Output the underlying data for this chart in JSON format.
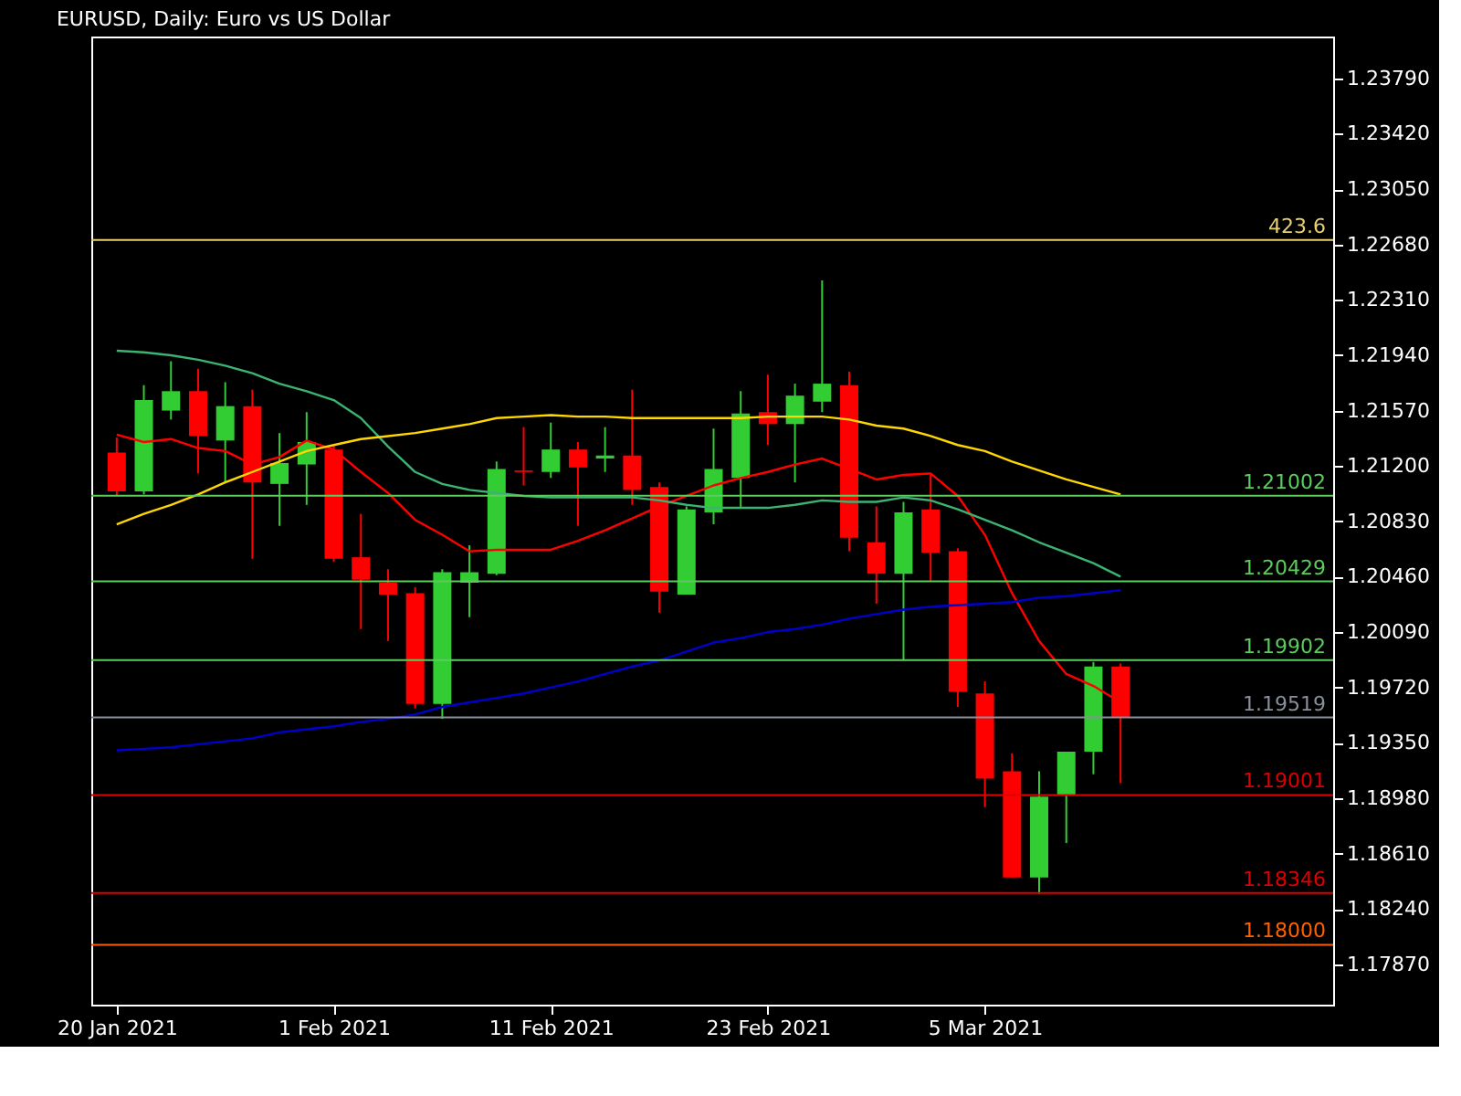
{
  "chart_data": {
    "type": "candlestick",
    "title": "EURUSD, Daily:  Euro vs US Dollar",
    "categories": [
      "20 Jan 2021",
      null,
      null,
      null,
      null,
      null,
      null,
      null,
      "1 Feb 2021",
      null,
      null,
      null,
      null,
      null,
      null,
      null,
      "11 Feb 2021",
      null,
      null,
      null,
      null,
      null,
      null,
      null,
      "23 Feb 2021",
      null,
      null,
      null,
      null,
      null,
      null,
      null,
      "5 Mar 2021",
      null,
      null,
      null,
      null,
      null
    ],
    "ohlc": [
      [
        1.2129,
        1.2139,
        1.21,
        1.2103
      ],
      [
        1.2103,
        1.2174,
        1.2101,
        1.2164
      ],
      [
        1.2157,
        1.219,
        1.2151,
        1.217
      ],
      [
        1.217,
        1.2185,
        1.2115,
        1.214
      ],
      [
        1.2137,
        1.2176,
        1.2109,
        1.216
      ],
      [
        1.216,
        1.2171,
        1.2058,
        1.2109
      ],
      [
        1.2108,
        1.2142,
        1.208,
        1.2122
      ],
      [
        1.2121,
        1.2156,
        1.2094,
        1.2136
      ],
      [
        1.2131,
        1.2134,
        1.2056,
        1.2058
      ],
      [
        1.2059,
        1.2088,
        1.2011,
        1.2044
      ],
      [
        1.2042,
        1.2051,
        1.2003,
        1.2034
      ],
      [
        1.2035,
        1.2039,
        1.1958,
        1.1961
      ],
      [
        1.1961,
        1.2051,
        1.1951,
        1.2049
      ],
      [
        1.2042,
        1.2067,
        1.2019,
        1.2049
      ],
      [
        1.2048,
        1.2123,
        1.2047,
        1.2118
      ],
      [
        1.2117,
        1.2146,
        1.2107,
        1.2116
      ],
      [
        1.2116,
        1.2149,
        1.2112,
        1.2131
      ],
      [
        1.2131,
        1.2136,
        1.208,
        1.2119
      ],
      [
        1.2125,
        1.2146,
        1.2116,
        1.2127
      ],
      [
        1.2127,
        1.2171,
        1.2094,
        1.2104
      ],
      [
        1.2106,
        1.2109,
        1.2022,
        1.2036
      ],
      [
        1.2034,
        1.2093,
        1.2034,
        1.2091
      ],
      [
        1.2089,
        1.2145,
        1.2081,
        1.2118
      ],
      [
        1.2112,
        1.217,
        1.2092,
        1.2155
      ],
      [
        1.2156,
        1.2181,
        1.2134,
        1.2148
      ],
      [
        1.2148,
        1.2175,
        1.2109,
        1.2167
      ],
      [
        1.2163,
        1.2244,
        1.2156,
        1.2175
      ],
      [
        1.2174,
        1.2183,
        1.2063,
        1.2072
      ],
      [
        1.2069,
        1.2093,
        1.2028,
        1.2048
      ],
      [
        1.2048,
        1.2096,
        1.199,
        1.2089
      ],
      [
        1.2091,
        1.2114,
        1.2043,
        1.2062
      ],
      [
        1.2063,
        1.2065,
        1.1959,
        1.1969
      ],
      [
        1.1968,
        1.1976,
        1.1892,
        1.1911
      ],
      [
        1.1916,
        1.1928,
        1.1845,
        1.1845
      ],
      [
        1.1845,
        1.1916,
        1.1834,
        1.1899
      ],
      [
        1.19,
        1.1929,
        1.1868,
        1.1929
      ],
      [
        1.1929,
        1.1989,
        1.1914,
        1.1986
      ],
      [
        1.1986,
        1.1988,
        1.1908,
        1.1952
      ]
    ],
    "colors": [
      "#ff0000",
      "#32cd32",
      "#32cd32",
      "#ff0000",
      "#32cd32",
      "#ff0000",
      "#32cd32",
      "#32cd32",
      "#ff0000",
      "#ff0000",
      "#ff0000",
      "#ff0000",
      "#32cd32",
      "#32cd32",
      "#32cd32",
      "#ff0000",
      "#32cd32",
      "#ff0000",
      "#32cd32",
      "#ff0000",
      "#ff0000",
      "#32cd32",
      "#32cd32",
      "#32cd32",
      "#ff0000",
      "#32cd32",
      "#32cd32",
      "#ff0000",
      "#ff0000",
      "#32cd32",
      "#ff0000",
      "#ff0000",
      "#ff0000",
      "#ff0000",
      "#32cd32",
      "#32cd32",
      "#32cd32",
      "#ff0000"
    ],
    "series": [
      {
        "type": "line",
        "color": "#ff0000",
        "values": [
          1.2141,
          1.2136,
          1.2138,
          1.2132,
          1.213,
          1.2121,
          1.2126,
          1.2137,
          1.2131,
          1.2116,
          1.2102,
          1.2084,
          1.2074,
          1.2063,
          1.2064,
          1.2064,
          1.2064,
          1.207,
          1.2077,
          1.2085,
          1.2093,
          1.21,
          1.2107,
          1.2112,
          1.2116,
          1.2121,
          1.2125,
          1.2118,
          1.2111,
          1.2114,
          1.2115,
          1.21,
          1.2074,
          1.2035,
          1.2003,
          1.1981,
          1.1973,
          1.1962
        ]
      },
      {
        "type": "line",
        "color": "#3cb371",
        "values": [
          1.2197,
          1.2196,
          1.2194,
          1.2191,
          1.2187,
          1.2182,
          1.2175,
          1.217,
          1.2164,
          1.2152,
          1.2133,
          1.2116,
          1.2108,
          1.2104,
          1.2102,
          1.21,
          1.2099,
          1.2099,
          1.2099,
          1.2099,
          1.2097,
          1.2094,
          1.2092,
          1.2092,
          1.2092,
          1.2094,
          1.2097,
          1.2096,
          1.2096,
          1.2099,
          1.2097,
          1.2091,
          1.2084,
          1.2077,
          1.2069,
          1.2062,
          1.2055,
          1.2046
        ]
      },
      {
        "type": "line",
        "color": "#ffd700",
        "values": [
          1.2081,
          1.2088,
          1.2094,
          1.2101,
          1.2109,
          1.2116,
          1.2123,
          1.213,
          1.2134,
          1.2138,
          1.214,
          1.2142,
          1.2145,
          1.2148,
          1.2152,
          1.2153,
          1.2154,
          1.2153,
          1.2153,
          1.2152,
          1.2152,
          1.2152,
          1.2152,
          1.2152,
          1.2153,
          1.2153,
          1.2153,
          1.2151,
          1.2147,
          1.2145,
          1.214,
          1.2134,
          1.213,
          1.2123,
          1.2117,
          1.2111,
          1.2106,
          1.2101
        ]
      },
      {
        "type": "line",
        "color": "#0000cd",
        "values": [
          1.193,
          1.1931,
          1.1932,
          1.1934,
          1.1936,
          1.1938,
          1.1942,
          1.1944,
          1.1946,
          1.1949,
          1.1951,
          1.1954,
          1.1959,
          1.1962,
          1.1965,
          1.1968,
          1.1972,
          1.1976,
          1.1981,
          1.1986,
          1.199,
          1.1996,
          1.2002,
          1.2005,
          1.2009,
          1.2011,
          1.2014,
          1.2018,
          1.2021,
          1.2024,
          1.2026,
          1.2027,
          1.2028,
          1.2029,
          1.2032,
          1.2033,
          1.2035,
          1.2037
        ]
      }
    ],
    "ylim": [
      1.176,
      1.2407
    ],
    "yticks": [
      {
        "value": 1.1787,
        "label": "1.17870"
      },
      {
        "value": 1.1824,
        "label": "1.18240"
      },
      {
        "value": 1.1861,
        "label": "1.18610"
      },
      {
        "value": 1.1898,
        "label": "1.18980"
      },
      {
        "value": 1.1935,
        "label": "1.19350"
      },
      {
        "value": 1.1972,
        "label": "1.19720"
      },
      {
        "value": 1.2009,
        "label": "1.20090"
      },
      {
        "value": 1.2046,
        "label": "1.20460"
      },
      {
        "value": 1.2083,
        "label": "1.20830"
      },
      {
        "value": 1.212,
        "label": "1.21200"
      },
      {
        "value": 1.2157,
        "label": "1.21570"
      },
      {
        "value": 1.2194,
        "label": "1.21940"
      },
      {
        "value": 1.2231,
        "label": "1.22310"
      },
      {
        "value": 1.2268,
        "label": "1.22680"
      },
      {
        "value": 1.2305,
        "label": "1.23050"
      },
      {
        "value": 1.2342,
        "label": "1.23420"
      },
      {
        "value": 1.2379,
        "label": "1.23790"
      }
    ],
    "ref_lines": [
      {
        "axis": "y",
        "value": 1.2271,
        "color": "#e8d070"
      },
      {
        "axis": "y",
        "value": 1.21002,
        "label": "1.21002",
        "color": "#5ccc5c"
      },
      {
        "axis": "y",
        "value": 1.20429,
        "label": "1.20429",
        "color": "#5ccc5c"
      },
      {
        "axis": "y",
        "value": 1.19902,
        "label": "1.19902",
        "color": "#5ccc5c"
      },
      {
        "axis": "y",
        "value": 1.19519,
        "label": "1.19519",
        "color": "#8a9099"
      },
      {
        "axis": "y",
        "value": 1.19001,
        "label": "1.19001",
        "color": "#e00000"
      },
      {
        "axis": "y",
        "value": 1.18346,
        "label": "1.18346",
        "color": "#e00000"
      },
      {
        "axis": "y",
        "value": 1.18,
        "label": "1.18000",
        "color": "#ff6000"
      }
    ],
    "annotations": [
      {
        "text": "423.6",
        "y": 1.2271
      }
    ]
  }
}
